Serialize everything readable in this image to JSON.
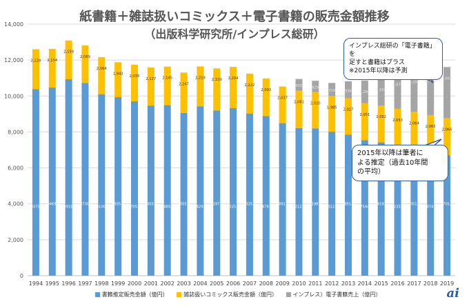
{
  "title": "紙書籍＋雑誌扱いコミックス＋電子書籍の販売金額推移",
  "subtitle": "（出版科学研究所/インプレス総研）",
  "callouts": {
    "note": "インプレス総研の「電子書籍」を\n足すと書籍はプラス\n※2015年以降は予測",
    "estimate": "2015年以降は筆者に\nよる推定（過去10年間\nの平均）"
  },
  "logo": "ai",
  "colors": {
    "book": "#5b9bd5",
    "magazine": "#ffc000",
    "ebook": "#a5a5a5",
    "callout_border": "#2f5d9e"
  },
  "chart_data": {
    "type": "bar",
    "stacked": true,
    "categories": [
      "1994",
      "1995",
      "1996",
      "1997",
      "1998",
      "1999",
      "2000",
      "2001",
      "2002",
      "2003",
      "2004",
      "2005",
      "2006",
      "2007",
      "2008",
      "2009",
      "2010",
      "2011",
      "2012",
      "2013",
      "2014",
      "2015",
      "2016",
      "2017",
      "2018",
      "2019"
    ],
    "y_axis": {
      "min": 0,
      "max": 14000,
      "ticks": [
        "0",
        "2,000",
        "4,000",
        "6,000",
        "8,000",
        "10,000",
        "12,000",
        "14,000"
      ],
      "grid": true
    },
    "legend_position": "bottom",
    "series": [
      {
        "name": "書籍推定販売金額（億円）",
        "color": "#5b9bd5",
        "values": [
          10375.5,
          10469.6,
          10931.1,
          10730.1,
          10100.4,
          9935.6,
          9705.7,
          9455.8,
          9489.8,
          9055.9,
          9429.4,
          9197.3,
          9325.8,
          9025.8,
          8878.1,
          8491.8,
          8212.9,
          8198.5,
          8012.9,
          7851.4,
          7544,
          7419.0,
          7233.8,
          7051.3,
          6874.4,
          6701.5
        ],
        "labels": [
          "10375.5",
          "10469.6",
          "10931.1",
          "10730.1",
          "10100.4",
          "9935.6",
          "9705.7",
          "9455.8",
          "9489.8",
          "9055.9",
          "9429.4",
          "9197.3",
          "9325.8",
          "9025.8",
          "8878.1",
          "8491.8",
          "8212.9",
          "8198.5",
          "8012.9",
          "7851.4",
          "7544",
          "7419.0",
          "7233.8",
          "7051.3",
          "6874.4",
          "6701.5"
        ]
      },
      {
        "name": "雑誌扱いコミックス販売金額（億円）",
        "color": "#ffc000",
        "values": [
          2228,
          2154,
          2159,
          2089,
          2064,
          1943,
          2035,
          2127,
          2145,
          2247,
          2219,
          2339,
          2294,
          2222,
          2093,
          2037,
          2081,
          2020,
          1985,
          2027,
          2051,
          2052,
          2053,
          2064,
          2065,
          2066
        ],
        "labels": [
          "2,228",
          "2,154",
          "2,159",
          "2,089",
          "2,064",
          "1,943",
          "2,035",
          "2,127",
          "2,145",
          "2,247",
          "2,219",
          "2,339",
          "2,294",
          "2,222",
          "2,093",
          "2,037",
          "2,081",
          "2,020",
          "1,985",
          "2,027",
          "2,051",
          "2,052",
          "2,053",
          "2,064",
          "2,065",
          "2,066"
        ]
      },
      {
        "name": "インプレス）電子書籍売上（億円）",
        "color": "#a5a5a5",
        "values": [
          0,
          0,
          0,
          0,
          0,
          0,
          0,
          0,
          0,
          0,
          0,
          0,
          0,
          0,
          0,
          0,
          650,
          629,
          729,
          936,
          1266,
          1502,
          1976,
          2294,
          2520,
          2843
        ],
        "labels": [
          "",
          "",
          "",
          "",
          "",
          "",
          "",
          "",
          "",
          "",
          "",
          "",
          "",
          "",
          "",
          "",
          "650",
          "629",
          "729",
          "936",
          "1,266",
          "1,502",
          "1,976",
          "2,294",
          "2,520",
          "2,843"
        ]
      }
    ]
  }
}
